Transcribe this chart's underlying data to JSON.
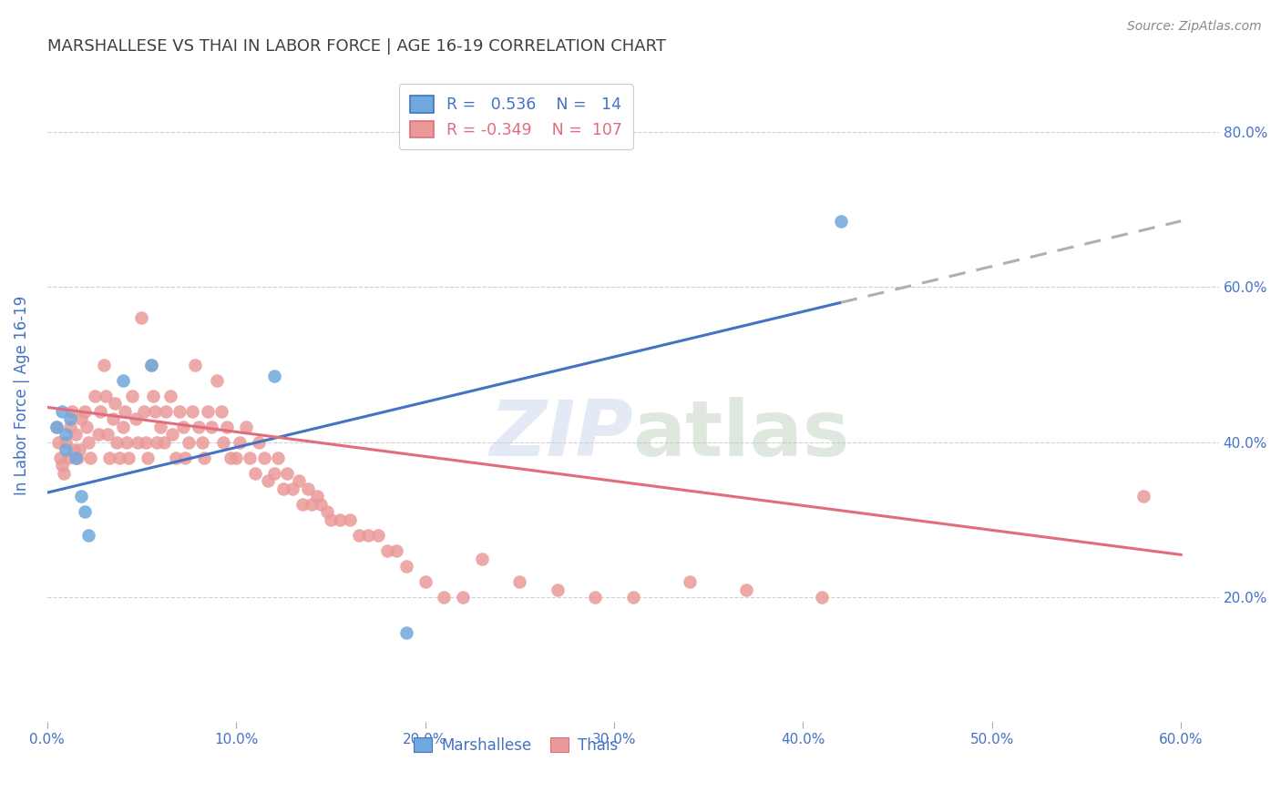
{
  "title": "MARSHALLESE VS THAI IN LABOR FORCE | AGE 16-19 CORRELATION CHART",
  "source": "Source: ZipAtlas.com",
  "ylabel": "In Labor Force | Age 16-19",
  "xlim": [
    0.0,
    0.62
  ],
  "ylim": [
    0.04,
    0.88
  ],
  "xtick_labels": [
    "0.0%",
    "10.0%",
    "20.0%",
    "30.0%",
    "40.0%",
    "50.0%",
    "60.0%"
  ],
  "xtick_vals": [
    0.0,
    0.1,
    0.2,
    0.3,
    0.4,
    0.5,
    0.6
  ],
  "ytick_vals": [
    0.2,
    0.4,
    0.6,
    0.8
  ],
  "right_ytick_labels": [
    "20.0%",
    "40.0%",
    "60.0%",
    "80.0%"
  ],
  "marshallese_color": "#6fa8dc",
  "thai_color": "#ea9999",
  "marshallese_R": 0.536,
  "marshallese_N": 14,
  "thai_R": -0.349,
  "thai_N": 107,
  "marshallese_line_color": "#4472c4",
  "thai_line_color": "#e06c7d",
  "dashed_extension_color": "#b0b0b0",
  "grid_color": "#d0d0d0",
  "background_color": "#ffffff",
  "title_color": "#404040",
  "axis_label_color": "#4472c4",
  "marshallese_x": [
    0.005,
    0.008,
    0.01,
    0.01,
    0.012,
    0.015,
    0.018,
    0.02,
    0.022,
    0.04,
    0.055,
    0.12,
    0.19,
    0.42
  ],
  "marshallese_y": [
    0.42,
    0.44,
    0.41,
    0.39,
    0.43,
    0.38,
    0.33,
    0.31,
    0.28,
    0.48,
    0.5,
    0.485,
    0.155,
    0.685
  ],
  "thai_x": [
    0.005,
    0.006,
    0.007,
    0.008,
    0.009,
    0.01,
    0.011,
    0.012,
    0.013,
    0.014,
    0.015,
    0.016,
    0.017,
    0.018,
    0.02,
    0.021,
    0.022,
    0.023,
    0.025,
    0.027,
    0.028,
    0.03,
    0.031,
    0.032,
    0.033,
    0.035,
    0.036,
    0.037,
    0.038,
    0.04,
    0.041,
    0.042,
    0.043,
    0.045,
    0.047,
    0.048,
    0.05,
    0.051,
    0.052,
    0.053,
    0.055,
    0.056,
    0.057,
    0.058,
    0.06,
    0.062,
    0.063,
    0.065,
    0.066,
    0.068,
    0.07,
    0.072,
    0.073,
    0.075,
    0.077,
    0.078,
    0.08,
    0.082,
    0.083,
    0.085,
    0.087,
    0.09,
    0.092,
    0.093,
    0.095,
    0.097,
    0.1,
    0.102,
    0.105,
    0.107,
    0.11,
    0.112,
    0.115,
    0.117,
    0.12,
    0.122,
    0.125,
    0.127,
    0.13,
    0.133,
    0.135,
    0.138,
    0.14,
    0.143,
    0.145,
    0.148,
    0.15,
    0.155,
    0.16,
    0.165,
    0.17,
    0.175,
    0.18,
    0.185,
    0.19,
    0.2,
    0.21,
    0.22,
    0.23,
    0.25,
    0.27,
    0.29,
    0.31,
    0.34,
    0.37,
    0.41,
    0.58
  ],
  "thai_y": [
    0.42,
    0.4,
    0.38,
    0.37,
    0.36,
    0.4,
    0.38,
    0.42,
    0.44,
    0.39,
    0.41,
    0.38,
    0.39,
    0.43,
    0.44,
    0.42,
    0.4,
    0.38,
    0.46,
    0.41,
    0.44,
    0.5,
    0.46,
    0.41,
    0.38,
    0.43,
    0.45,
    0.4,
    0.38,
    0.42,
    0.44,
    0.4,
    0.38,
    0.46,
    0.43,
    0.4,
    0.56,
    0.44,
    0.4,
    0.38,
    0.5,
    0.46,
    0.44,
    0.4,
    0.42,
    0.4,
    0.44,
    0.46,
    0.41,
    0.38,
    0.44,
    0.42,
    0.38,
    0.4,
    0.44,
    0.5,
    0.42,
    0.4,
    0.38,
    0.44,
    0.42,
    0.48,
    0.44,
    0.4,
    0.42,
    0.38,
    0.38,
    0.4,
    0.42,
    0.38,
    0.36,
    0.4,
    0.38,
    0.35,
    0.36,
    0.38,
    0.34,
    0.36,
    0.34,
    0.35,
    0.32,
    0.34,
    0.32,
    0.33,
    0.32,
    0.31,
    0.3,
    0.3,
    0.3,
    0.28,
    0.28,
    0.28,
    0.26,
    0.26,
    0.24,
    0.22,
    0.2,
    0.2,
    0.25,
    0.22,
    0.21,
    0.2,
    0.2,
    0.22,
    0.21,
    0.2,
    0.33
  ]
}
